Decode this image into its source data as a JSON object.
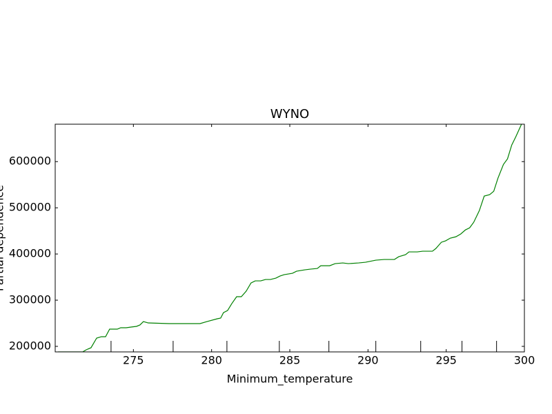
{
  "chart_data": {
    "type": "line",
    "title": "WYNO",
    "x_label": "Minimum_temperature",
    "y_label": "Partial dependence",
    "xlim": [
      270,
      300
    ],
    "ylim": [
      188000,
      681000
    ],
    "xticks": [
      275,
      280,
      285,
      290,
      295,
      300
    ],
    "yticks": [
      200000,
      300000,
      400000,
      500000,
      600000
    ],
    "grid": false,
    "deciles": [
      273.57,
      277.54,
      280.98,
      284.33,
      287.5,
      290.5,
      293.37,
      296.01,
      298.22
    ],
    "x": [
      270.18,
      271.76,
      271.98,
      272.29,
      272.65,
      272.95,
      273.22,
      273.48,
      273.97,
      274.19,
      274.54,
      274.85,
      275.2,
      275.42,
      275.64,
      275.95,
      277.28,
      278.38,
      279.26,
      279.7,
      280.36,
      280.58,
      280.76,
      281.02,
      281.29,
      281.6,
      281.9,
      282.21,
      282.52,
      282.79,
      283.14,
      283.45,
      283.76,
      284.11,
      284.37,
      284.64,
      285.17,
      285.43,
      285.96,
      286.31,
      286.76,
      286.98,
      287.55,
      287.9,
      288.39,
      288.74,
      289.4,
      289.84,
      290.5,
      291.03,
      291.69,
      291.96,
      292.4,
      292.62,
      293.15,
      293.5,
      294.12,
      294.34,
      294.69,
      294.96,
      295.26,
      295.62,
      295.93,
      296.23,
      296.5,
      296.76,
      297.12,
      297.43,
      297.78,
      298.04,
      298.31,
      298.66,
      298.92,
      299.19,
      299.45,
      299.81
    ],
    "series": [
      {
        "color": "#008000",
        "values": [
          188060,
          188060,
          192500,
          197000,
          217900,
          220900,
          220900,
          237300,
          237300,
          240300,
          240300,
          241800,
          243300,
          246300,
          253700,
          250700,
          249300,
          249300,
          249300,
          253700,
          259700,
          261200,
          273100,
          277600,
          292500,
          307500,
          307500,
          319400,
          337300,
          341800,
          341800,
          344800,
          344800,
          347800,
          352200,
          355200,
          358200,
          362700,
          365700,
          367200,
          368700,
          374600,
          374600,
          379100,
          380600,
          379100,
          380600,
          382100,
          386600,
          388100,
          388100,
          394000,
          398500,
          404500,
          404500,
          406000,
          406000,
          411900,
          425400,
          428400,
          434300,
          437300,
          443300,
          452200,
          456700,
          468700,
          494000,
          525400,
          528500,
          535800,
          564200,
          594000,
          606000,
          635800,
          653700,
          680600
        ]
      }
    ]
  }
}
